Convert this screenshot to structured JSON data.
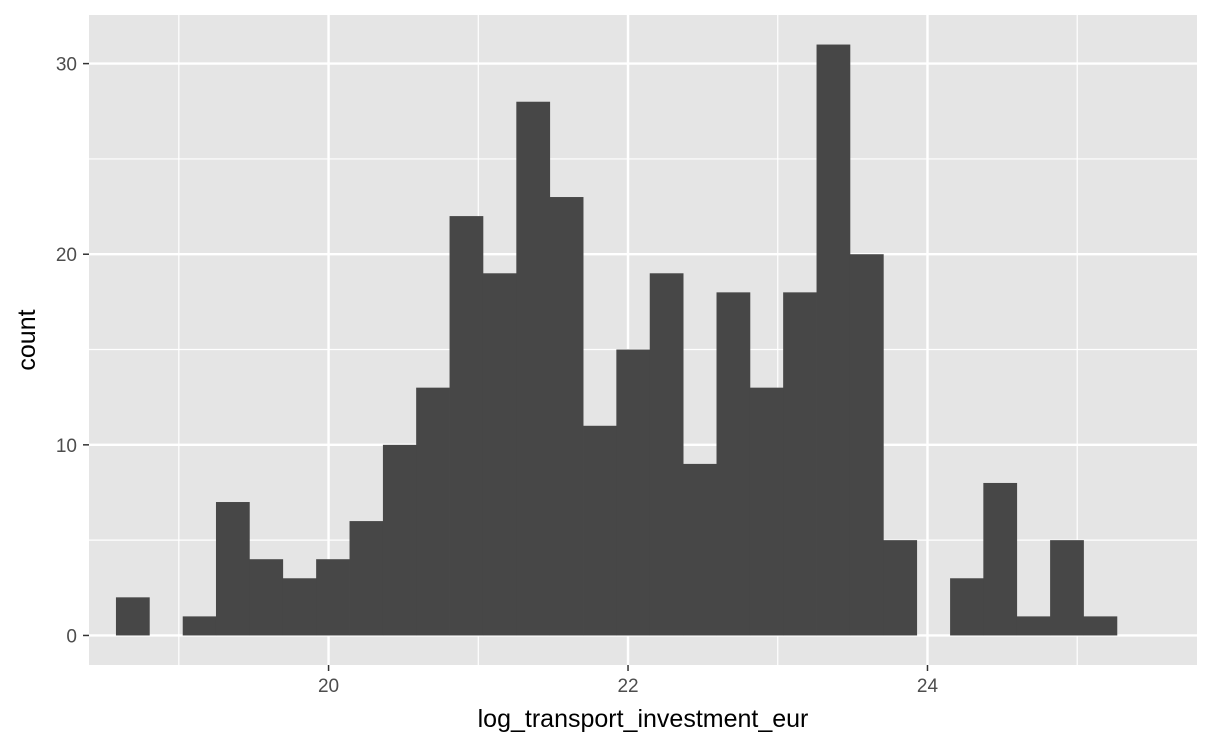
{
  "chart_data": {
    "type": "bar",
    "subtype": "histogram",
    "title": "",
    "xlabel": "log_transport_investment_eur",
    "ylabel": "count",
    "xlim": [
      18.4,
      25.8
    ],
    "ylim": [
      -1.55,
      32.55
    ],
    "x_ticks": [
      20,
      22,
      24
    ],
    "x_tick_labels": [
      "20",
      "22",
      "24"
    ],
    "y_ticks": [
      0,
      10,
      20,
      30
    ],
    "y_tick_labels": [
      "0",
      "10",
      "20",
      "30"
    ],
    "grid": true,
    "legend": "none",
    "colors": {
      "panel": "#e5e5e5",
      "grid": "#ffffff",
      "bar": "#474747"
    },
    "bin_width": 0.2228,
    "bin_starts": [
      18.58,
      18.803,
      19.026,
      19.248,
      19.471,
      19.694,
      19.917,
      20.14,
      20.363,
      20.585,
      20.808,
      21.031,
      21.254,
      21.477,
      21.7,
      21.922,
      22.145,
      22.368,
      22.591,
      22.814,
      23.036,
      23.259,
      23.482,
      23.705,
      23.928,
      24.151,
      24.373,
      24.596,
      24.819,
      25.042
    ],
    "counts": [
      2,
      0,
      1,
      7,
      4,
      3,
      4,
      6,
      10,
      13,
      22,
      19,
      28,
      23,
      11,
      15,
      19,
      9,
      18,
      13,
      18,
      31,
      20,
      5,
      0,
      3,
      8,
      1,
      5,
      1
    ]
  }
}
